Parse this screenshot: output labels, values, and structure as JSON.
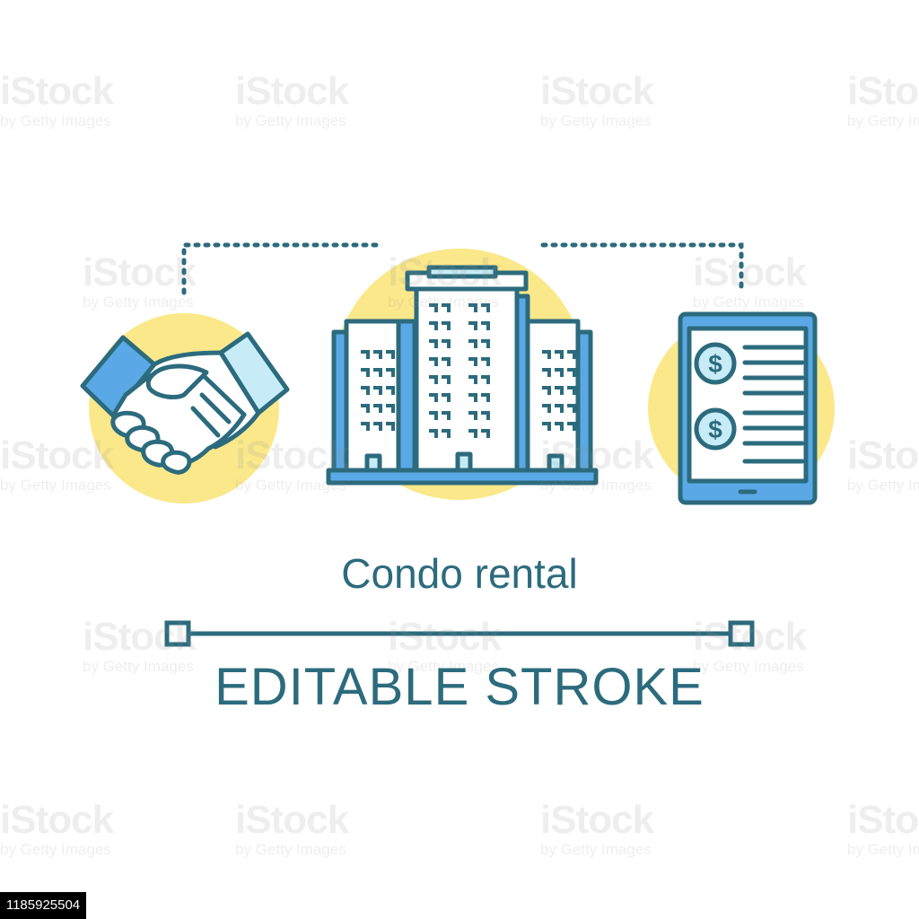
{
  "title": "Condo rental",
  "subtitle": "EDITABLE STROKE",
  "stock_id": "1185925504",
  "watermark": {
    "brand": "iStock",
    "byline": "by Getty Images"
  },
  "colors": {
    "stroke": "#2c6b7d",
    "accent_yellow": "#fbe88a",
    "blue": "#5aa9e6",
    "light_blue": "#c7ecf8",
    "white": "#ffffff"
  },
  "icons": [
    {
      "name": "handshake-icon"
    },
    {
      "name": "condo-building-icon"
    },
    {
      "name": "tablet-payment-icon"
    }
  ]
}
